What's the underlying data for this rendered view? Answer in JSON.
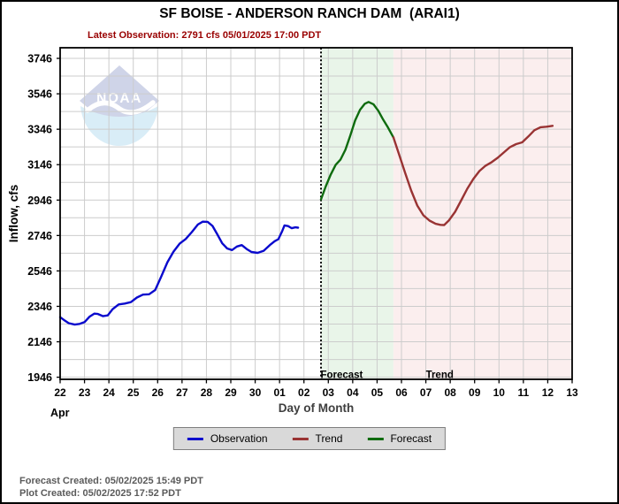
{
  "header": {
    "title": "SF BOISE - ANDERSON RANCH DAM  (ARAI1)",
    "subtitle": "Latest Observation: 2791 cfs 05/01/2025 17:00 PDT"
  },
  "footer": {
    "lines": [
      "Forecast Created: 05/02/2025 15:49 PDT",
      "Plot Created: 05/02/2025 17:52 PDT"
    ]
  },
  "chart_data": {
    "type": "line",
    "title": "SF BOISE - ANDERSON RANCH DAM  (ARAI1)",
    "xlabel": "Day of Month",
    "ylabel": "Inflow, cfs",
    "watermark_label": "NOAA",
    "x_month_label": "Apr",
    "xlim": [
      22,
      43
    ],
    "ylim": [
      1934,
      3806
    ],
    "x_tick_days": [
      22,
      23,
      24,
      25,
      26,
      27,
      28,
      29,
      30,
      31,
      32,
      33,
      34,
      35,
      36,
      37,
      38,
      39,
      40,
      41,
      42,
      43
    ],
    "x_tick_labels": [
      "22",
      "23",
      "24",
      "25",
      "26",
      "27",
      "28",
      "29",
      "30",
      "01",
      "02",
      "03",
      "04",
      "05",
      "06",
      "07",
      "08",
      "09",
      "10",
      "11",
      "12",
      "13"
    ],
    "y_tick_values": [
      1946,
      2146,
      2346,
      2546,
      2746,
      2946,
      3146,
      3346,
      3546,
      3746
    ],
    "y_grid_min": 1946,
    "y_grid_max": 3746,
    "y_grid_step": 100,
    "grid_color": "#cccccc",
    "now_line_day": 32.7,
    "bands": [
      {
        "name": "Forecast",
        "from_day": 32.7,
        "to_day": 35.67,
        "fill": "#e9f5e9",
        "label_day": 32.68
      },
      {
        "name": "Trend",
        "from_day": 35.67,
        "to_day": 43.0,
        "fill": "#fbeeee",
        "label_day": 37.0
      }
    ],
    "series": [
      {
        "name": "Observation",
        "color": "#0a0acd",
        "points": [
          [
            22.0,
            2285
          ],
          [
            22.15,
            2270
          ],
          [
            22.35,
            2251
          ],
          [
            22.6,
            2243
          ],
          [
            22.8,
            2247
          ],
          [
            23.0,
            2257
          ],
          [
            23.2,
            2287
          ],
          [
            23.4,
            2305
          ],
          [
            23.55,
            2303
          ],
          [
            23.75,
            2291
          ],
          [
            23.95,
            2295
          ],
          [
            24.15,
            2330
          ],
          [
            24.4,
            2357
          ],
          [
            24.65,
            2362
          ],
          [
            24.9,
            2370
          ],
          [
            25.15,
            2396
          ],
          [
            25.4,
            2412
          ],
          [
            25.65,
            2414
          ],
          [
            25.9,
            2438
          ],
          [
            26.15,
            2515
          ],
          [
            26.4,
            2595
          ],
          [
            26.65,
            2655
          ],
          [
            26.9,
            2700
          ],
          [
            27.15,
            2726
          ],
          [
            27.4,
            2765
          ],
          [
            27.65,
            2808
          ],
          [
            27.85,
            2824
          ],
          [
            28.05,
            2823
          ],
          [
            28.25,
            2800
          ],
          [
            28.45,
            2752
          ],
          [
            28.65,
            2702
          ],
          [
            28.85,
            2673
          ],
          [
            29.05,
            2664
          ],
          [
            29.25,
            2684
          ],
          [
            29.45,
            2692
          ],
          [
            29.65,
            2670
          ],
          [
            29.85,
            2653
          ],
          [
            30.1,
            2648
          ],
          [
            30.35,
            2660
          ],
          [
            30.6,
            2692
          ],
          [
            30.8,
            2714
          ],
          [
            30.95,
            2725
          ],
          [
            31.1,
            2768
          ],
          [
            31.2,
            2803
          ],
          [
            31.35,
            2799
          ],
          [
            31.5,
            2787
          ],
          [
            31.65,
            2792
          ],
          [
            31.76,
            2790
          ]
        ]
      },
      {
        "name": "Forecast",
        "color": "#0e6b0e",
        "points": [
          [
            32.7,
            2950
          ],
          [
            32.9,
            3025
          ],
          [
            33.1,
            3090
          ],
          [
            33.3,
            3145
          ],
          [
            33.5,
            3175
          ],
          [
            33.7,
            3230
          ],
          [
            33.9,
            3310
          ],
          [
            34.1,
            3395
          ],
          [
            34.3,
            3455
          ],
          [
            34.5,
            3490
          ],
          [
            34.65,
            3500
          ],
          [
            34.85,
            3487
          ],
          [
            35.05,
            3450
          ],
          [
            35.25,
            3400
          ],
          [
            35.45,
            3355
          ],
          [
            35.67,
            3300
          ]
        ]
      },
      {
        "name": "Trend",
        "color": "#993333",
        "points": [
          [
            35.67,
            3300
          ],
          [
            35.9,
            3205
          ],
          [
            36.15,
            3100
          ],
          [
            36.4,
            3000
          ],
          [
            36.65,
            2915
          ],
          [
            36.9,
            2860
          ],
          [
            37.15,
            2830
          ],
          [
            37.4,
            2812
          ],
          [
            37.6,
            2806
          ],
          [
            37.75,
            2805
          ],
          [
            37.95,
            2832
          ],
          [
            38.2,
            2880
          ],
          [
            38.45,
            2945
          ],
          [
            38.7,
            3010
          ],
          [
            38.95,
            3065
          ],
          [
            39.2,
            3110
          ],
          [
            39.45,
            3140
          ],
          [
            39.7,
            3160
          ],
          [
            39.95,
            3185
          ],
          [
            40.2,
            3215
          ],
          [
            40.45,
            3245
          ],
          [
            40.7,
            3262
          ],
          [
            40.95,
            3272
          ],
          [
            41.2,
            3305
          ],
          [
            41.45,
            3340
          ],
          [
            41.7,
            3357
          ],
          [
            41.95,
            3360
          ],
          [
            42.2,
            3365
          ]
        ]
      }
    ],
    "legend": [
      {
        "label": "Observation",
        "color": "#0a0acd"
      },
      {
        "label": "Trend",
        "color": "#993333"
      },
      {
        "label": "Forecast",
        "color": "#0e6b0e"
      }
    ]
  }
}
